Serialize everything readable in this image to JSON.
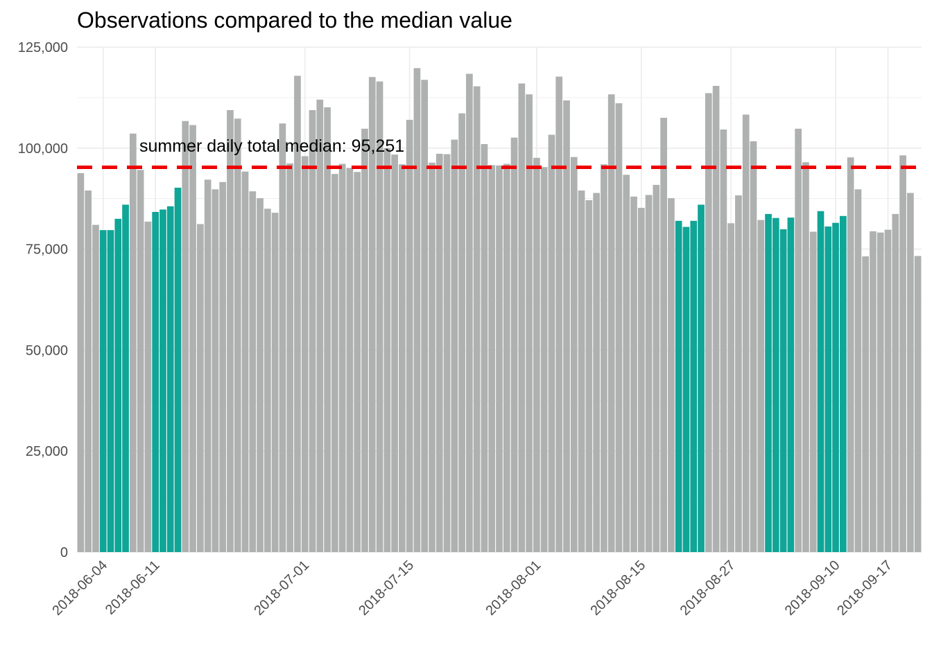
{
  "chart_data": {
    "type": "bar",
    "title": "Observations compared to the median value",
    "xlabel": "",
    "ylabel": "",
    "x_start": "2018-06-01",
    "ylim": [
      0,
      125000
    ],
    "y_ticks": [
      0,
      25000,
      50000,
      75000,
      100000,
      125000
    ],
    "y_tick_labels": [
      "0",
      "25,000",
      "50,000",
      "75,000",
      "100,000",
      "125,000"
    ],
    "x_ticks": [
      "2018-06-04",
      "2018-06-11",
      "2018-07-01",
      "2018-07-15",
      "2018-08-01",
      "2018-08-15",
      "2018-08-27",
      "2018-09-10",
      "2018-09-17"
    ],
    "values": [
      93800,
      89500,
      81000,
      79700,
      79700,
      82500,
      86000,
      103600,
      94600,
      81800,
      84200,
      84800,
      85600,
      90200,
      106700,
      105700,
      81200,
      92200,
      89800,
      91600,
      109400,
      107300,
      94200,
      89300,
      87600,
      85000,
      84000,
      106100,
      96200,
      117900,
      98000,
      109400,
      112000,
      110100,
      93600,
      96100,
      95100,
      94100,
      104800,
      117600,
      116500,
      100000,
      98400,
      96000,
      107000,
      119800,
      116900,
      96400,
      98600,
      98500,
      102100,
      108600,
      118400,
      115300,
      101000,
      95800,
      95700,
      96100,
      102600,
      116000,
      113300,
      97600,
      95300,
      103300,
      117700,
      111800,
      97800,
      89500,
      87100,
      88900,
      96000,
      113300,
      111100,
      93400,
      88000,
      85200,
      88400,
      90900,
      107500,
      87600,
      82000,
      80500,
      82000,
      86000,
      113600,
      115400,
      104600,
      81400,
      88300,
      108300,
      101700,
      82200,
      83700,
      82700,
      79900,
      82800,
      104800,
      96500,
      79300,
      84400,
      80600,
      81500,
      83200,
      97700,
      89800,
      73200,
      79400,
      79100,
      79800,
      83700,
      98200,
      88900,
      73300
    ],
    "highlight_indices": [
      3,
      4,
      5,
      6,
      10,
      11,
      12,
      13,
      80,
      81,
      82,
      83,
      92,
      93,
      94,
      95,
      99,
      100,
      101,
      102
    ],
    "reference_line": {
      "value": 95251,
      "style": "dashed",
      "label": "summer daily total median: 95,251"
    },
    "colors": {
      "bar": "#aeb1b0",
      "highlight": "#0fa597",
      "median_line": "#ee0000",
      "grid": "#ebebeb"
    }
  }
}
